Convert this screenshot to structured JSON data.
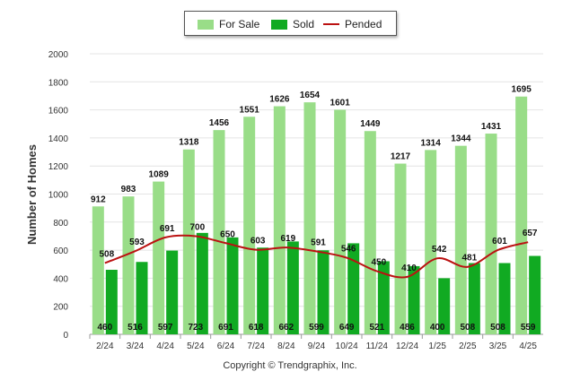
{
  "chart_data": {
    "type": "bar",
    "ylabel": "Number of Homes",
    "ylim": [
      0,
      2000
    ],
    "yticks": [
      0,
      200,
      400,
      600,
      800,
      1000,
      1200,
      1400,
      1600,
      1800,
      2000
    ],
    "categories": [
      "2/24",
      "3/24",
      "4/24",
      "5/24",
      "6/24",
      "7/24",
      "8/24",
      "9/24",
      "10/24",
      "11/24",
      "12/24",
      "1/25",
      "2/25",
      "3/25",
      "4/25"
    ],
    "series": [
      {
        "name": "For Sale",
        "kind": "bar",
        "color": "#99dd88",
        "values": [
          912,
          983,
          1089,
          1318,
          1456,
          1551,
          1626,
          1654,
          1601,
          1449,
          1217,
          1314,
          1344,
          1431,
          1695
        ]
      },
      {
        "name": "Sold",
        "kind": "bar",
        "color": "#11aa22",
        "values": [
          460,
          516,
          597,
          723,
          691,
          618,
          662,
          599,
          649,
          521,
          486,
          400,
          508,
          508,
          559
        ]
      },
      {
        "name": "Pended",
        "kind": "line",
        "color": "#bb1111",
        "values": [
          508,
          593,
          691,
          700,
          650,
          603,
          619,
          591,
          546,
          450,
          410,
          542,
          481,
          601,
          657
        ]
      }
    ],
    "grid": true,
    "legend_position": "top-center"
  },
  "legend": {
    "for_sale": "For Sale",
    "sold": "Sold",
    "pended": "Pended"
  },
  "footer": {
    "copyright": "Copyright © Trendgraphix, Inc."
  }
}
